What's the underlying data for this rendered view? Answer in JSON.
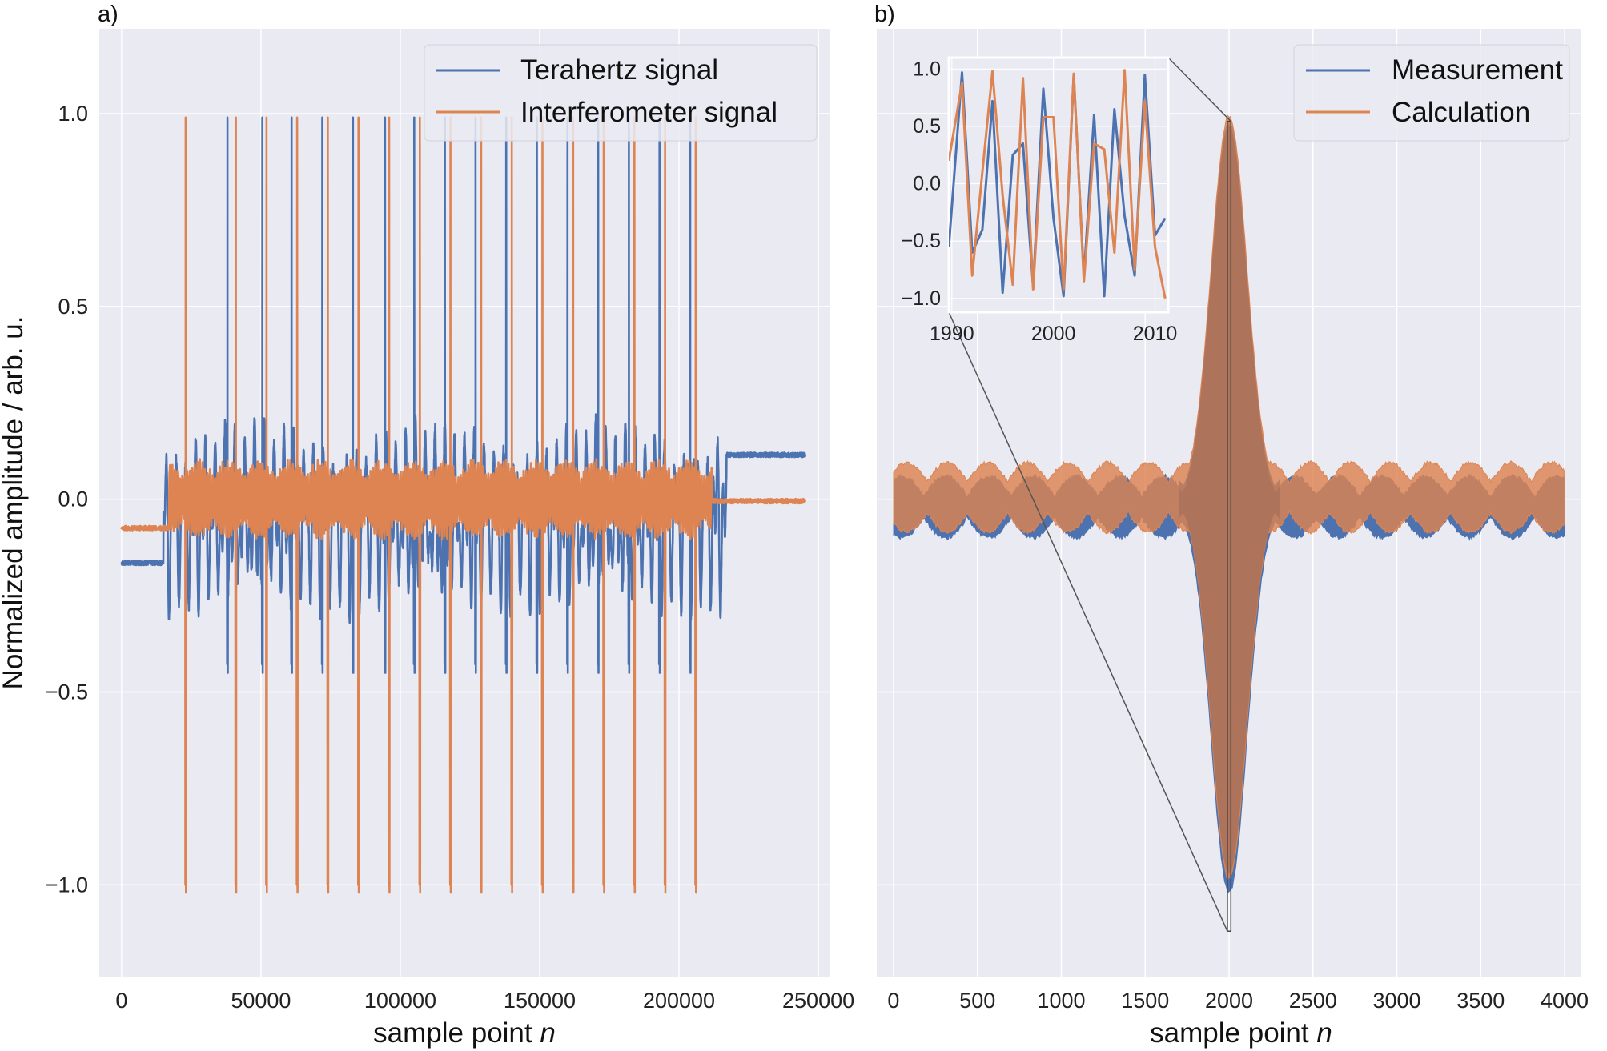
{
  "colors": {
    "series1": "#4c72b0",
    "series2": "#dd8452",
    "background": "#eaeaf2",
    "grid": "#ffffff"
  },
  "chart_data": [
    {
      "type": "line",
      "panel_label": "a)",
      "xlabel": "sample point ",
      "xlabel_italic": "n",
      "ylabel": "Normalized amplitude / arb. u.",
      "xlim": [
        -8000,
        254000
      ],
      "ylim": [
        -1.24,
        1.22
      ],
      "x_ticks": [
        0,
        50000,
        100000,
        150000,
        200000,
        250000
      ],
      "x_tick_labels": [
        "0",
        "50000",
        "100000",
        "150000",
        "200000",
        "250000"
      ],
      "y_ticks": [
        -1.0,
        -0.5,
        0.0,
        0.5,
        1.0
      ],
      "y_tick_labels": [
        "−1.0",
        "−0.5",
        "0.0",
        "0.5",
        "1.0"
      ],
      "legend_position": "top-right",
      "series": [
        {
          "name": "Terahertz signal",
          "color": "#4c72b0",
          "baseline_segments": [
            {
              "x_start": 0,
              "x_end": 15000,
              "level": -0.165
            },
            {
              "x_start": 217000,
              "x_end": 245000,
              "level": 0.115
            }
          ],
          "pulse_positions": [
            38000,
            50500,
            61000,
            72000,
            83000,
            94500,
            105000,
            116000,
            127000,
            138000,
            149000,
            160000,
            171000,
            182000,
            193000,
            204000
          ],
          "pulse_peak": 0.99,
          "pulse_trough": -0.45,
          "oscillation_envelope": 0.14
        },
        {
          "name": "Interferometer signal",
          "color": "#dd8452",
          "baseline_segments": [
            {
              "x_start": 0,
              "x_end": 17000,
              "level": -0.075
            },
            {
              "x_start": 212000,
              "x_end": 245000,
              "level": -0.005
            }
          ],
          "pulse_positions": [
            23000,
            41000,
            52000,
            63000,
            74000,
            85000,
            96000,
            107000,
            118000,
            129000,
            140000,
            151000,
            162000,
            173000,
            184000,
            195000,
            206000
          ],
          "pulse_peak": 0.99,
          "pulse_trough": -1.02,
          "oscillation_envelope": 0.09
        }
      ]
    },
    {
      "type": "line",
      "panel_label": "b)",
      "xlabel": "sample point ",
      "xlabel_italic": "n",
      "xlim": [
        -100,
        4100
      ],
      "ylim": [
        -1.24,
        1.22
      ],
      "x_ticks": [
        0,
        500,
        1000,
        1500,
        2000,
        2500,
        3000,
        3500,
        4000
      ],
      "x_tick_labels": [
        "0",
        "500",
        "1000",
        "1500",
        "2000",
        "2500",
        "3000",
        "3500",
        "4000"
      ],
      "y_ticks": [
        -1.0,
        -0.5,
        0.0,
        0.5,
        1.0
      ],
      "legend_position": "top-right",
      "series": [
        {
          "name": "Measurement",
          "color": "#4c72b0",
          "center": 2000,
          "peak_amplitude": 1.0,
          "sidelobe_amplitude": 0.08
        },
        {
          "name": "Calculation",
          "color": "#dd8452",
          "center": 2000,
          "peak_amplitude": 0.99,
          "sidelobe_amplitude": 0.09
        }
      ],
      "zoom_region": {
        "x": [
          1990,
          2011
        ],
        "y": [
          -1.12,
          0.98
        ]
      },
      "inset": {
        "xlim": [
          1989.7,
          2011.3
        ],
        "ylim": [
          -1.12,
          1.1
        ],
        "x_ticks": [
          1990,
          2000,
          2010
        ],
        "x_tick_labels": [
          "1990",
          "2000",
          "2010"
        ],
        "y_ticks": [
          -1.0,
          -0.5,
          0.0,
          0.5,
          1.0
        ],
        "y_tick_labels": [
          "−1.0",
          "−0.5",
          "0.0",
          "0.5",
          "1.0"
        ],
        "series": [
          {
            "name": "Measurement",
            "x": [
              1989.7,
              1991,
              1992,
              1993,
              1994,
              1995,
              1996,
              1997,
              1998,
              1999,
              2000,
              2001,
              2002,
              2003,
              2004,
              2005,
              2006,
              2007,
              2008,
              2009,
              2010,
              2011
            ],
            "y": [
              -0.55,
              0.97,
              -0.6,
              -0.4,
              0.72,
              -0.95,
              0.25,
              0.35,
              -0.9,
              0.83,
              -0.3,
              -0.98,
              0.95,
              -0.82,
              0.6,
              -0.98,
              0.65,
              -0.28,
              -0.8,
              0.95,
              -0.45,
              -0.3
            ]
          },
          {
            "name": "Calculation",
            "x": [
              1989.7,
              1991,
              1992,
              1993,
              1994,
              1995,
              1996,
              1997,
              1998,
              1999,
              2000,
              2001,
              2002,
              2003,
              2004,
              2005,
              2006,
              2007,
              2008,
              2009,
              2010,
              2011
            ],
            "y": [
              0.2,
              0.88,
              -0.8,
              0.1,
              0.98,
              -0.1,
              -0.88,
              0.92,
              -0.92,
              0.58,
              0.58,
              -0.92,
              0.96,
              -0.85,
              0.35,
              0.3,
              -0.6,
              0.99,
              -0.75,
              0.72,
              -0.55,
              -1.0
            ]
          }
        ]
      }
    }
  ]
}
